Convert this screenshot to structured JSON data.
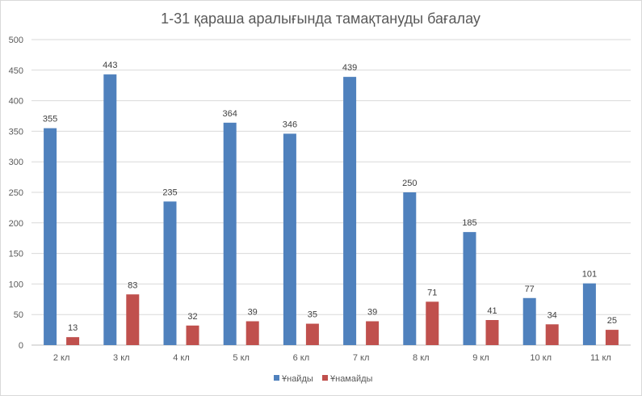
{
  "chart_data": {
    "type": "bar",
    "title": "1-31 қараша  аралығында тамақтануды бағалау",
    "xlabel": "",
    "ylabel": "",
    "categories": [
      "2 кл",
      "3 кл",
      "4 кл",
      "5 кл",
      "6 кл",
      "7 кл",
      "8 кл",
      "9 кл",
      "10 кл",
      "11 кл"
    ],
    "series": [
      {
        "name": "Ұнайды",
        "color": "#4f81bd",
        "values": [
          355,
          443,
          235,
          364,
          346,
          439,
          250,
          185,
          77,
          101
        ]
      },
      {
        "name": "Ұнамайды",
        "color": "#c0504d",
        "values": [
          13,
          83,
          32,
          39,
          35,
          39,
          71,
          41,
          34,
          25
        ]
      }
    ],
    "ylim": [
      0,
      500
    ],
    "yticks": [
      0,
      50,
      100,
      150,
      200,
      250,
      300,
      350,
      400,
      450,
      500
    ],
    "grid": true,
    "data_labels": true,
    "legend_position": "bottom"
  }
}
